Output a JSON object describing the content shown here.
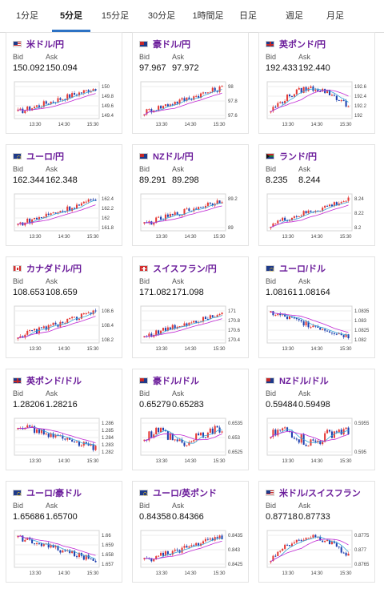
{
  "tabs": [
    {
      "label": "1分足",
      "active": false
    },
    {
      "label": "5分足",
      "active": true
    },
    {
      "label": "15分足",
      "active": false
    },
    {
      "label": "30分足",
      "active": false
    },
    {
      "label": "1時間足",
      "active": false
    },
    {
      "label": "日足",
      "active": false
    },
    {
      "label": "週足",
      "active": false
    },
    {
      "label": "月足",
      "active": false
    }
  ],
  "colors": {
    "up": "#e53935",
    "down": "#1e40af",
    "ma_short": "#3aa7d8",
    "ma_long": "#c026d3",
    "accent": "#2d72c4",
    "pair_text": "#6a1b9a"
  },
  "cards": [
    {
      "pair": "米ドル/円",
      "flag": "us-flag",
      "bid_label": "Bid",
      "ask_label": "Ask",
      "bid": "150.092",
      "ask": "150.094",
      "chart_data": {
        "type": "candlestick",
        "x_ticks": [
          "13:30",
          "14:30",
          "15:30"
        ],
        "y_ticks": [
          "150",
          "149.8",
          "149.6",
          "149.4"
        ],
        "ylim": [
          149.35,
          150.1
        ],
        "trend": "up"
      }
    },
    {
      "pair": "豪ドル/円",
      "flag": "au-flag",
      "bid_label": "Bid",
      "ask_label": "Ask",
      "bid": "97.967",
      "ask": "97.972",
      "chart_data": {
        "type": "candlestick",
        "x_ticks": [
          "13:30",
          "14:30",
          "15:30"
        ],
        "y_ticks": [
          "98",
          "97.8",
          "97.6"
        ],
        "ylim": [
          97.5,
          98.02
        ],
        "trend": "up"
      }
    },
    {
      "pair": "英ポンド/円",
      "flag": "gb-flag",
      "bid_label": "Bid",
      "ask_label": "Ask",
      "bid": "192.433",
      "ask": "192.440",
      "chart_data": {
        "type": "candlestick",
        "x_ticks": [
          "13:30",
          "14:30",
          "15:30"
        ],
        "y_ticks": [
          "192.6",
          "192.4",
          "192.2",
          "192"
        ],
        "ylim": [
          191.95,
          192.7
        ],
        "trend": "updown"
      }
    },
    {
      "pair": "ユーロ/円",
      "flag": "eu-flag",
      "bid_label": "Bid",
      "ask_label": "Ask",
      "bid": "162.344",
      "ask": "162.348",
      "chart_data": {
        "type": "candlestick",
        "x_ticks": [
          "13:30",
          "14:30",
          "15:30"
        ],
        "y_ticks": [
          "162.4",
          "162.2",
          "162",
          "161.8"
        ],
        "ylim": [
          161.75,
          162.45
        ],
        "trend": "up"
      }
    },
    {
      "pair": "NZドル/円",
      "flag": "nz-flag",
      "bid_label": "Bid",
      "ask_label": "Ask",
      "bid": "89.291",
      "ask": "89.298",
      "chart_data": {
        "type": "candlestick",
        "x_ticks": [
          "13:30",
          "14:30",
          "15:30"
        ],
        "y_ticks": [
          "89.2",
          "89"
        ],
        "ylim": [
          88.9,
          89.32
        ],
        "trend": "up"
      }
    },
    {
      "pair": "ランド/円",
      "flag": "za-flag",
      "bid_label": "Bid",
      "ask_label": "Ask",
      "bid": "8.235",
      "ask": "8.244",
      "chart_data": {
        "type": "candlestick",
        "x_ticks": [
          "13:30",
          "14:30",
          "15:30"
        ],
        "y_ticks": [
          "8.24",
          "8.22",
          "8.2"
        ],
        "ylim": [
          8.19,
          8.245
        ],
        "trend": "up"
      }
    },
    {
      "pair": "カナダドル/円",
      "flag": "ca-flag",
      "bid_label": "Bid",
      "ask_label": "Ask",
      "bid": "108.653",
      "ask": "108.659",
      "chart_data": {
        "type": "candlestick",
        "x_ticks": [
          "13:30",
          "14:30",
          "15:30"
        ],
        "y_ticks": [
          "108.6",
          "108.4",
          "108.2"
        ],
        "ylim": [
          108.15,
          108.7
        ],
        "trend": "up"
      }
    },
    {
      "pair": "スイスフラン/円",
      "flag": "ch-flag",
      "bid_label": "Bid",
      "ask_label": "Ask",
      "bid": "171.082",
      "ask": "171.098",
      "chart_data": {
        "type": "candlestick",
        "x_ticks": [
          "13:30",
          "14:30",
          "15:30"
        ],
        "y_ticks": [
          "171",
          "170.8",
          "170.6",
          "170.4"
        ],
        "ylim": [
          170.35,
          171.1
        ],
        "trend": "up"
      }
    },
    {
      "pair": "ユーロ/ドル",
      "flag": "eu-us-flag",
      "bid_label": "Bid",
      "ask_label": "Ask",
      "bid": "1.08161",
      "ask": "1.08164",
      "chart_data": {
        "type": "candlestick",
        "x_ticks": [
          "13:30",
          "14:30",
          "15:30"
        ],
        "y_ticks": [
          "1.0835",
          "1.083",
          "1.0825",
          "1.082"
        ],
        "ylim": [
          1.0817,
          1.0838
        ],
        "trend": "down"
      }
    },
    {
      "pair": "英ポンド/ドル",
      "flag": "gb-us-flag",
      "bid_label": "Bid",
      "ask_label": "Ask",
      "bid": "1.28206",
      "ask": "1.28216",
      "chart_data": {
        "type": "candlestick",
        "x_ticks": [
          "13:30",
          "14:30",
          "15:30"
        ],
        "y_ticks": [
          "1.286",
          "1.285",
          "1.284",
          "1.283",
          "1.282"
        ],
        "ylim": [
          1.2818,
          1.2862
        ],
        "trend": "down"
      }
    },
    {
      "pair": "豪ドル/ドル",
      "flag": "au-us-flag",
      "bid_label": "Bid",
      "ask_label": "Ask",
      "bid": "0.65279",
      "ask": "0.65283",
      "chart_data": {
        "type": "candlestick",
        "x_ticks": [
          "13:30",
          "14:30",
          "15:30"
        ],
        "y_ticks": [
          "0.6535",
          "0.653",
          "0.6525"
        ],
        "ylim": [
          0.6523,
          0.6537
        ],
        "trend": "flat"
      }
    },
    {
      "pair": "NZドル/ドル",
      "flag": "nz-us-flag",
      "bid_label": "Bid",
      "ask_label": "Ask",
      "bid": "0.59484",
      "ask": "0.59498",
      "chart_data": {
        "type": "candlestick",
        "x_ticks": [
          "13:30",
          "14:30",
          "15:30"
        ],
        "y_ticks": [
          "0.5955",
          "0.595"
        ],
        "ylim": [
          0.5946,
          0.5957
        ],
        "trend": "flat"
      }
    },
    {
      "pair": "ユーロ/豪ドル",
      "flag": "eu-au-flag",
      "bid_label": "Bid",
      "ask_label": "Ask",
      "bid": "1.65686",
      "ask": "1.65700",
      "chart_data": {
        "type": "candlestick",
        "x_ticks": [
          "13:30",
          "14:30",
          "15:30"
        ],
        "y_ticks": [
          "1.66",
          "1.659",
          "1.658",
          "1.657"
        ],
        "ylim": [
          1.6565,
          1.6603
        ],
        "trend": "down"
      }
    },
    {
      "pair": "ユーロ/英ポンド",
      "flag": "eu-gb-flag",
      "bid_label": "Bid",
      "ask_label": "Ask",
      "bid": "0.84358",
      "ask": "0.84366",
      "chart_data": {
        "type": "candlestick",
        "x_ticks": [
          "13:30",
          "14:30",
          "15:30"
        ],
        "y_ticks": [
          "0.8435",
          "0.843",
          "0.8425"
        ],
        "ylim": [
          0.8423,
          0.8437
        ],
        "trend": "up"
      }
    },
    {
      "pair": "米ドル/スイスフラン",
      "flag": "us-ch-flag",
      "bid_label": "Bid",
      "ask_label": "Ask",
      "bid": "0.87718",
      "ask": "0.87733",
      "chart_data": {
        "type": "candlestick",
        "x_ticks": [
          "13:30",
          "14:30",
          "15:30"
        ],
        "y_ticks": [
          "0.8775",
          "0.877",
          "0.8765"
        ],
        "ylim": [
          0.8763,
          0.8777
        ],
        "trend": "updown"
      }
    }
  ]
}
